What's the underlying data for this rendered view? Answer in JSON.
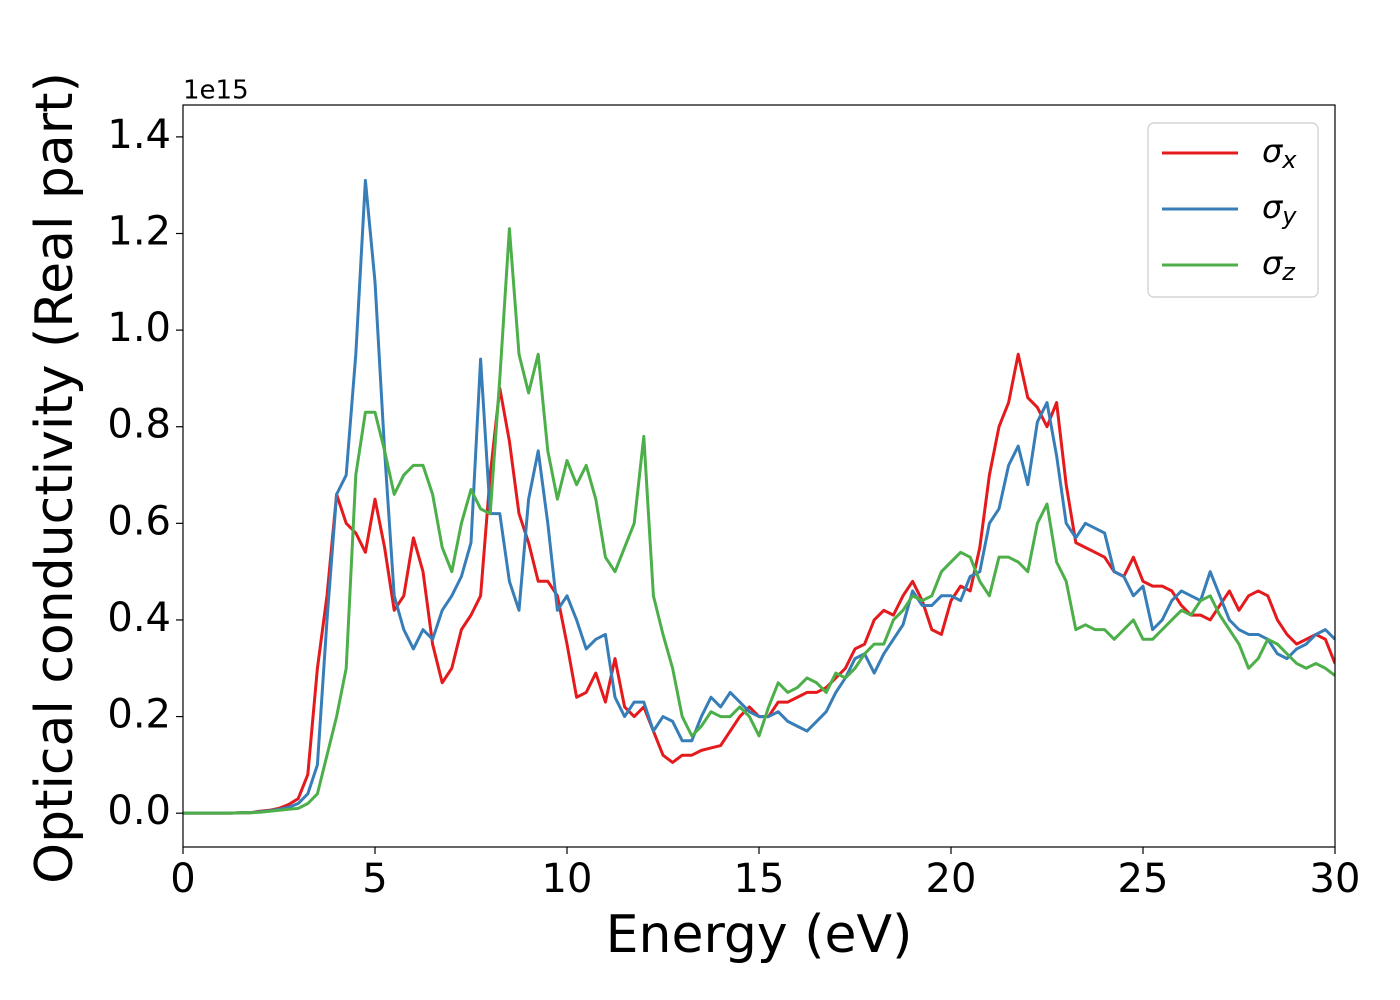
{
  "chart_data": {
    "type": "line",
    "xlabel": "Energy (eV)",
    "ylabel": "Optical conductivity (Real part)",
    "y_offset_label": "1e15",
    "xlim": [
      0,
      30
    ],
    "ylim": [
      -0.07,
      1.466
    ],
    "xticks": [
      0,
      5,
      10,
      15,
      20,
      25,
      30
    ],
    "yticks": [
      {
        "value": 0,
        "label": "0.0"
      },
      0.2,
      0.4,
      0.6,
      0.8,
      {
        "value": 1,
        "label": "1.0"
      },
      1.2,
      1.4
    ],
    "legend": "upper right",
    "x": [
      0,
      0.25,
      0.5,
      0.75,
      1,
      1.25,
      1.5,
      1.75,
      2,
      2.25,
      2.5,
      2.75,
      3,
      3.25,
      3.5,
      3.75,
      4,
      4.25,
      4.5,
      4.75,
      5,
      5.25,
      5.5,
      5.75,
      6,
      6.25,
      6.5,
      6.75,
      7,
      7.25,
      7.5,
      7.75,
      8,
      8.25,
      8.5,
      8.75,
      9,
      9.25,
      9.5,
      9.75,
      10,
      10.25,
      10.5,
      10.75,
      11,
      11.25,
      11.5,
      11.75,
      12,
      12.25,
      12.5,
      12.75,
      13,
      13.25,
      13.5,
      13.75,
      14,
      14.25,
      14.5,
      14.75,
      15,
      15.25,
      15.5,
      15.75,
      16,
      16.25,
      16.5,
      16.75,
      17,
      17.25,
      17.5,
      17.75,
      18,
      18.25,
      18.5,
      18.75,
      19,
      19.25,
      19.5,
      19.75,
      20,
      20.25,
      20.5,
      20.75,
      21,
      21.25,
      21.5,
      21.75,
      22,
      22.25,
      22.5,
      22.75,
      23,
      23.25,
      23.5,
      23.75,
      24,
      24.25,
      24.5,
      24.75,
      25,
      25.25,
      25.5,
      25.75,
      26,
      26.25,
      26.5,
      26.75,
      27,
      27.25,
      27.5,
      27.75,
      28,
      28.25,
      28.5,
      28.75,
      29,
      29.25,
      29.5,
      29.75,
      30
    ],
    "series": [
      {
        "name": "σx",
        "color": "#e41a1c",
        "values": [
          0,
          0,
          0,
          0,
          0,
          0,
          0.001,
          0.001,
          0.004,
          0.006,
          0.01,
          0.018,
          0.03,
          0.08,
          0.3,
          0.45,
          0.66,
          0.6,
          0.58,
          0.54,
          0.65,
          0.55,
          0.42,
          0.45,
          0.57,
          0.5,
          0.35,
          0.27,
          0.3,
          0.38,
          0.41,
          0.45,
          0.7,
          0.88,
          0.77,
          0.62,
          0.56,
          0.48,
          0.48,
          0.45,
          0.35,
          0.24,
          0.25,
          0.29,
          0.23,
          0.32,
          0.22,
          0.2,
          0.22,
          0.17,
          0.12,
          0.105,
          0.12,
          0.12,
          0.13,
          0.135,
          0.14,
          0.17,
          0.2,
          0.22,
          0.2,
          0.2,
          0.23,
          0.23,
          0.24,
          0.25,
          0.25,
          0.26,
          0.28,
          0.3,
          0.34,
          0.35,
          0.4,
          0.42,
          0.41,
          0.45,
          0.48,
          0.44,
          0.38,
          0.37,
          0.44,
          0.47,
          0.46,
          0.55,
          0.7,
          0.8,
          0.85,
          0.95,
          0.86,
          0.84,
          0.8,
          0.85,
          0.68,
          0.56,
          0.55,
          0.54,
          0.53,
          0.5,
          0.49,
          0.53,
          0.48,
          0.47,
          0.47,
          0.46,
          0.43,
          0.41,
          0.41,
          0.4,
          0.43,
          0.46,
          0.42,
          0.45,
          0.46,
          0.45,
          0.4,
          0.37,
          0.35,
          0.36,
          0.37,
          0.36,
          0.31
        ]
      },
      {
        "name": "σy",
        "color": "#377eb8",
        "values": [
          0,
          0,
          0,
          0,
          0,
          0,
          0.001,
          0.001,
          0.003,
          0.005,
          0.008,
          0.012,
          0.02,
          0.04,
          0.1,
          0.4,
          0.66,
          0.7,
          0.95,
          1.31,
          1.1,
          0.75,
          0.45,
          0.38,
          0.34,
          0.38,
          0.36,
          0.42,
          0.45,
          0.49,
          0.56,
          0.94,
          0.62,
          0.62,
          0.48,
          0.42,
          0.65,
          0.75,
          0.6,
          0.42,
          0.45,
          0.4,
          0.34,
          0.36,
          0.37,
          0.24,
          0.2,
          0.23,
          0.23,
          0.17,
          0.2,
          0.19,
          0.15,
          0.15,
          0.2,
          0.24,
          0.22,
          0.25,
          0.23,
          0.21,
          0.2,
          0.2,
          0.21,
          0.19,
          0.18,
          0.17,
          0.19,
          0.21,
          0.25,
          0.28,
          0.32,
          0.33,
          0.29,
          0.33,
          0.36,
          0.39,
          0.46,
          0.43,
          0.43,
          0.45,
          0.45,
          0.44,
          0.49,
          0.5,
          0.6,
          0.63,
          0.72,
          0.76,
          0.68,
          0.81,
          0.85,
          0.74,
          0.6,
          0.57,
          0.6,
          0.59,
          0.58,
          0.5,
          0.49,
          0.45,
          0.47,
          0.38,
          0.4,
          0.44,
          0.46,
          0.45,
          0.44,
          0.5,
          0.45,
          0.4,
          0.38,
          0.37,
          0.37,
          0.36,
          0.33,
          0.32,
          0.34,
          0.35,
          0.37,
          0.38,
          0.36
        ]
      },
      {
        "name": "σz",
        "color": "#4daf4a",
        "values": [
          0,
          0,
          0,
          0,
          0,
          0,
          0.001,
          0.001,
          0.002,
          0.004,
          0.006,
          0.008,
          0.01,
          0.02,
          0.04,
          0.12,
          0.2,
          0.3,
          0.7,
          0.83,
          0.83,
          0.75,
          0.66,
          0.7,
          0.72,
          0.72,
          0.66,
          0.55,
          0.5,
          0.6,
          0.67,
          0.63,
          0.62,
          0.9,
          1.21,
          0.95,
          0.87,
          0.95,
          0.75,
          0.65,
          0.73,
          0.68,
          0.72,
          0.65,
          0.53,
          0.5,
          0.55,
          0.6,
          0.78,
          0.45,
          0.37,
          0.3,
          0.2,
          0.16,
          0.18,
          0.21,
          0.2,
          0.2,
          0.22,
          0.2,
          0.16,
          0.22,
          0.27,
          0.25,
          0.26,
          0.28,
          0.27,
          0.25,
          0.29,
          0.28,
          0.3,
          0.33,
          0.35,
          0.35,
          0.4,
          0.42,
          0.45,
          0.44,
          0.45,
          0.5,
          0.52,
          0.54,
          0.53,
          0.48,
          0.45,
          0.53,
          0.53,
          0.52,
          0.5,
          0.6,
          0.64,
          0.52,
          0.48,
          0.38,
          0.39,
          0.38,
          0.38,
          0.36,
          0.38,
          0.4,
          0.36,
          0.36,
          0.38,
          0.4,
          0.42,
          0.41,
          0.44,
          0.45,
          0.41,
          0.38,
          0.35,
          0.3,
          0.32,
          0.36,
          0.35,
          0.33,
          0.31,
          0.3,
          0.31,
          0.3,
          0.285
        ]
      }
    ]
  }
}
